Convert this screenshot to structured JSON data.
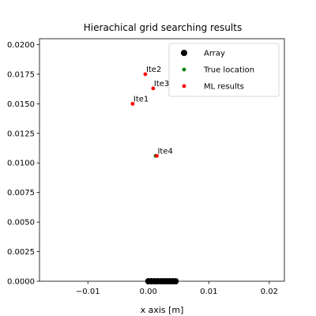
{
  "chart_data": {
    "type": "scatter",
    "title": "Hierachical grid searching results",
    "xlabel": "x axis [m]",
    "ylabel": "",
    "xlim": [
      -0.018,
      0.0225
    ],
    "ylim": [
      0.0,
      0.0205
    ],
    "x_ticks": [
      -0.01,
      0.0,
      0.01,
      0.02
    ],
    "x_tick_labels": [
      "−0.01",
      "0.00",
      "0.01",
      "0.02"
    ],
    "y_ticks": [
      0.0,
      0.0025,
      0.005,
      0.0075,
      0.01,
      0.0125,
      0.015,
      0.0175,
      0.02
    ],
    "y_tick_labels": [
      "0.0000",
      "0.0025",
      "0.0050",
      "0.0075",
      "0.0100",
      "0.0125",
      "0.0150",
      "0.0175",
      "0.0200"
    ],
    "grid": false,
    "legend_position": "top-right",
    "series": [
      {
        "name": "Array",
        "color": "#000000",
        "marker": "large-circle",
        "points": [
          {
            "x": 0.0,
            "y": 0.0
          },
          {
            "x": 0.0005,
            "y": 0.0
          },
          {
            "x": 0.001,
            "y": 0.0
          },
          {
            "x": 0.0015,
            "y": 0.0
          },
          {
            "x": 0.002,
            "y": 0.0
          },
          {
            "x": 0.0025,
            "y": 0.0
          },
          {
            "x": 0.003,
            "y": 0.0
          },
          {
            "x": 0.0035,
            "y": 0.0
          },
          {
            "x": 0.004,
            "y": 0.0
          },
          {
            "x": 0.0045,
            "y": 0.0
          }
        ]
      },
      {
        "name": "True location",
        "color": "#008000",
        "marker": "small-circle",
        "points": [
          {
            "x": 0.0012,
            "y": 0.0106
          }
        ]
      },
      {
        "name": "ML results",
        "color": "#ff0000",
        "marker": "small-circle",
        "points": [
          {
            "x": -0.0026,
            "y": 0.015,
            "label": "Ite1"
          },
          {
            "x": -0.0005,
            "y": 0.0175,
            "label": "Ite2"
          },
          {
            "x": 0.0008,
            "y": 0.0163,
            "label": "Ite3"
          },
          {
            "x": 0.0014,
            "y": 0.0106,
            "label": "Ite4"
          }
        ]
      }
    ]
  }
}
